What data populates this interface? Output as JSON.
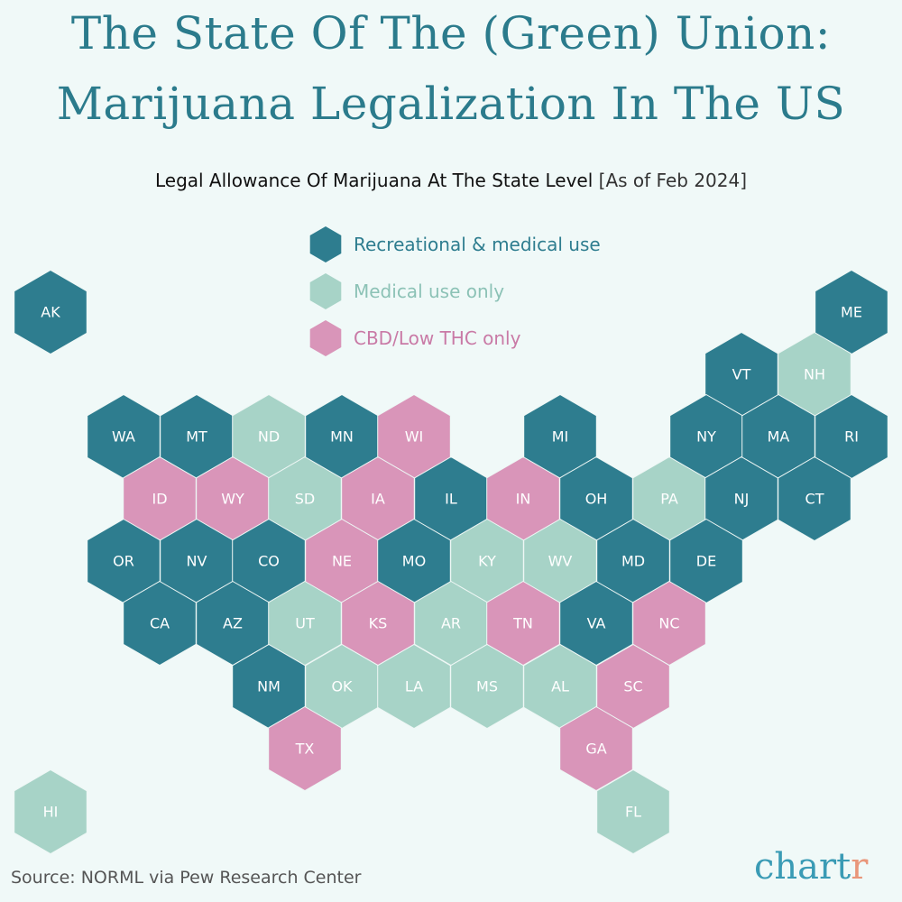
{
  "title_line1": "The State Of The (Green) Union:",
  "title_line2": "Marijuana Legalization In The US",
  "subtitle": "Legal Allowance Of Marijuana At The State Level",
  "subtitle_note": "[As of Feb 2024]",
  "colors": {
    "recreational": "#2e7d8f",
    "medical": "#a7d3c7",
    "cbd": "#d995b9",
    "background": "#f0f9f8",
    "title": "#2b7b8c"
  },
  "legend": [
    {
      "key": "recreational",
      "label": "Recreational & medical use",
      "text_color": "#2e7d8f"
    },
    {
      "key": "medical",
      "label": "Medical use only",
      "text_color": "#8cc2b6"
    },
    {
      "key": "cbd",
      "label": "CBD/Low THC only",
      "text_color": "#c97aa6"
    }
  ],
  "states": [
    {
      "code": "AK",
      "status": "recreational"
    },
    {
      "code": "ME",
      "status": "recreational"
    },
    {
      "code": "VT",
      "status": "recreational"
    },
    {
      "code": "NH",
      "status": "medical"
    },
    {
      "code": "WA",
      "status": "recreational"
    },
    {
      "code": "MT",
      "status": "recreational"
    },
    {
      "code": "ND",
      "status": "medical"
    },
    {
      "code": "MN",
      "status": "recreational"
    },
    {
      "code": "WI",
      "status": "cbd"
    },
    {
      "code": "MI",
      "status": "recreational"
    },
    {
      "code": "NY",
      "status": "recreational"
    },
    {
      "code": "MA",
      "status": "recreational"
    },
    {
      "code": "RI",
      "status": "recreational"
    },
    {
      "code": "ID",
      "status": "cbd"
    },
    {
      "code": "WY",
      "status": "cbd"
    },
    {
      "code": "SD",
      "status": "medical"
    },
    {
      "code": "IA",
      "status": "cbd"
    },
    {
      "code": "IL",
      "status": "recreational"
    },
    {
      "code": "IN",
      "status": "cbd"
    },
    {
      "code": "OH",
      "status": "recreational"
    },
    {
      "code": "PA",
      "status": "medical"
    },
    {
      "code": "NJ",
      "status": "recreational"
    },
    {
      "code": "CT",
      "status": "recreational"
    },
    {
      "code": "OR",
      "status": "recreational"
    },
    {
      "code": "NV",
      "status": "recreational"
    },
    {
      "code": "CO",
      "status": "recreational"
    },
    {
      "code": "NE",
      "status": "cbd"
    },
    {
      "code": "MO",
      "status": "recreational"
    },
    {
      "code": "KY",
      "status": "medical"
    },
    {
      "code": "WV",
      "status": "medical"
    },
    {
      "code": "MD",
      "status": "recreational"
    },
    {
      "code": "DE",
      "status": "recreational"
    },
    {
      "code": "CA",
      "status": "recreational"
    },
    {
      "code": "AZ",
      "status": "recreational"
    },
    {
      "code": "UT",
      "status": "medical"
    },
    {
      "code": "KS",
      "status": "cbd"
    },
    {
      "code": "AR",
      "status": "medical"
    },
    {
      "code": "TN",
      "status": "cbd"
    },
    {
      "code": "VA",
      "status": "recreational"
    },
    {
      "code": "NC",
      "status": "cbd"
    },
    {
      "code": "NM",
      "status": "recreational"
    },
    {
      "code": "OK",
      "status": "medical"
    },
    {
      "code": "LA",
      "status": "medical"
    },
    {
      "code": "MS",
      "status": "medical"
    },
    {
      "code": "AL",
      "status": "medical"
    },
    {
      "code": "SC",
      "status": "cbd"
    },
    {
      "code": "TX",
      "status": "cbd"
    },
    {
      "code": "GA",
      "status": "cbd"
    },
    {
      "code": "HI",
      "status": "medical"
    },
    {
      "code": "FL",
      "status": "medical"
    }
  ],
  "source": "Source: NORML via Pew Research Center",
  "logo": {
    "main": "chart",
    "accent": "r"
  }
}
